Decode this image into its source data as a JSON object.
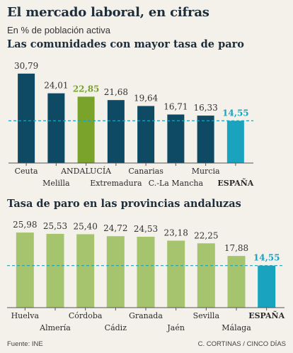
{
  "title": "El mercado laboral, en cifras",
  "subtitle": "En % de población activa",
  "footer": {
    "source": "Fuente: INE",
    "credit": "C. CORTINAS / CINCO DÍAS"
  },
  "colors": {
    "navy": "#0e4a63",
    "highlight_green": "#7aa32b",
    "espana_teal": "#1aa3bf",
    "light_green": "#a6c46e",
    "reference_line": "#1aa3bf",
    "baseline": "#555555"
  },
  "chart_data": [
    {
      "type": "bar",
      "title": "Las comunidades con mayor tasa de paro",
      "categories": [
        "Ceuta",
        "Melilla",
        "ANDALUCÍA",
        "Extremadura",
        "Canarias",
        "C.-La Mancha",
        "Murcia",
        "ESPAÑA"
      ],
      "values": [
        30.79,
        24.01,
        22.85,
        21.68,
        19.64,
        16.71,
        16.33,
        14.55
      ],
      "value_labels": [
        "30,79",
        "24,01",
        "22,85",
        "21,68",
        "19,64",
        "16,71",
        "16,33",
        "14,55"
      ],
      "bar_colors": [
        "navy",
        "navy",
        "highlight_green",
        "navy",
        "navy",
        "navy",
        "navy",
        "espana_teal"
      ],
      "label_colors": [
        "#333333",
        "#333333",
        "#7aa32b",
        "#333333",
        "#333333",
        "#333333",
        "#333333",
        "#1aa3bf"
      ],
      "reference_line": 14.55,
      "ylim": [
        0,
        31
      ]
    },
    {
      "type": "bar",
      "title": "Tasa de paro en las provincias andaluzas",
      "categories": [
        "Huelva",
        "Almería",
        "Córdoba",
        "Cádiz",
        "Granada",
        "Jaén",
        "Sevilla",
        "Málaga",
        "ESPAÑA"
      ],
      "values": [
        25.98,
        25.53,
        25.4,
        24.72,
        24.53,
        23.18,
        22.25,
        17.88,
        14.55
      ],
      "value_labels": [
        "25,98",
        "25,53",
        "25,40",
        "24,72",
        "24,53",
        "23,18",
        "22,25",
        "17,88",
        "14,55"
      ],
      "bar_colors": [
        "light_green",
        "light_green",
        "light_green",
        "light_green",
        "light_green",
        "light_green",
        "light_green",
        "light_green",
        "espana_teal"
      ],
      "label_colors": [
        "#333333",
        "#333333",
        "#333333",
        "#333333",
        "#333333",
        "#333333",
        "#333333",
        "#333333",
        "#1aa3bf"
      ],
      "reference_line": 14.55,
      "ylim": [
        0,
        26
      ]
    }
  ]
}
